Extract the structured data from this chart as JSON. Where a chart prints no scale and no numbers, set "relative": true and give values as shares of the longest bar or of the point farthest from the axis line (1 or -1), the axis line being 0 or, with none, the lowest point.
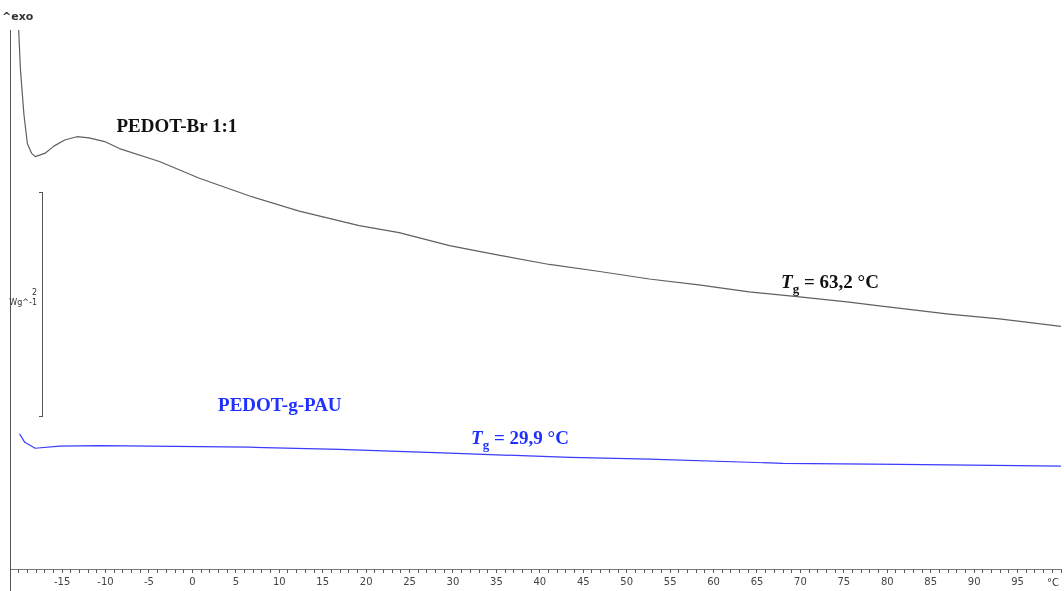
{
  "chart_data": {
    "type": "line",
    "relative": true,
    "xlabel": "°C",
    "xlim": [
      -21,
      100
    ],
    "xticks": [
      -15,
      -10,
      -5,
      0,
      5,
      10,
      15,
      20,
      25,
      30,
      35,
      40,
      45,
      50,
      55,
      60,
      65,
      70,
      75,
      80,
      85,
      90,
      95
    ],
    "grid": false,
    "legend": false,
    "marker": "none",
    "line_style": "solid",
    "series": [
      {
        "name": "PEDOT-Br 1:1",
        "color": "#606060",
        "x": [
          -20.0,
          -19.8,
          -19.4,
          -19.0,
          -18.5,
          -18.1,
          -17.0,
          -15.9,
          -14.7,
          -13.3,
          -11.9,
          -10.1,
          -8.4,
          -3.8,
          0.8,
          6.6,
          12.3,
          19.2,
          23.8,
          29.6,
          35.4,
          41.1,
          46.9,
          52.6,
          58.3,
          64.1,
          69.9,
          75.6,
          79.1,
          87.1,
          92.9,
          100
        ],
        "values": [
          1.0,
          0.927,
          0.844,
          0.789,
          0.771,
          0.765,
          0.771,
          0.785,
          0.796,
          0.802,
          0.8,
          0.793,
          0.78,
          0.756,
          0.725,
          0.692,
          0.664,
          0.637,
          0.624,
          0.6,
          0.582,
          0.565,
          0.552,
          0.538,
          0.527,
          0.514,
          0.505,
          0.495,
          0.488,
          0.473,
          0.464,
          0.45
        ]
      },
      {
        "name": "PEDOT-g-PAU",
        "color": "#3b3bff",
        "x": [
          -19.9,
          -19.3,
          -18.1,
          -15.3,
          -10.7,
          -4.9,
          6.6,
          16.9,
          29.6,
          43.5,
          52.6,
          68.0,
          81.4,
          100
        ],
        "values": [
          0.251,
          0.235,
          0.224,
          0.228,
          0.229,
          0.228,
          0.226,
          0.222,
          0.215,
          0.207,
          0.204,
          0.196,
          0.194,
          0.191
        ]
      }
    ],
    "annotations": [
      "^exo",
      "2",
      "Wg^-1",
      "T$_{g}$ = 63,2 °C",
      "T$_{g}$ = 29,9 °C"
    ]
  }
}
